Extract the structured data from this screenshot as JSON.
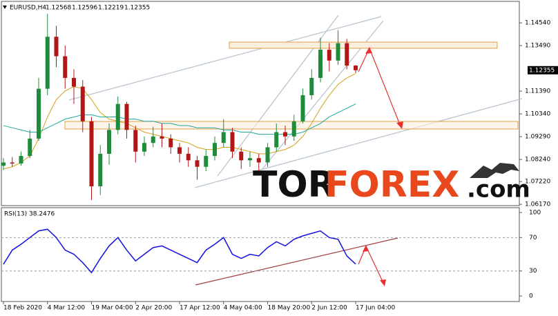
{
  "chart_data": [
    {
      "type": "candlestick",
      "title": "EURUSD,H4",
      "x": [
        "18 Feb 2020",
        null,
        null,
        null,
        null,
        "4 Mar 12:00",
        null,
        null,
        null,
        null,
        "19 Mar 04:00",
        null,
        null,
        null,
        null,
        "2 Apr 20:00",
        null,
        null,
        null,
        null,
        "17 Apr 12:00",
        null,
        null,
        null,
        null,
        "4 May 04:00",
        null,
        null,
        null,
        null,
        "18 May 20:00",
        null,
        null,
        null,
        null,
        "2 Jun 12:00",
        null,
        null,
        null,
        null,
        "17 Jun 04:00"
      ],
      "open": [
        1.0795,
        1.081,
        1.0805,
        1.084,
        1.092,
        1.115,
        1.139,
        1.13,
        1.12,
        1.116,
        1.1,
        1.07,
        1.085,
        1.096,
        1.108,
        1.096,
        1.086,
        1.09,
        1.093,
        1.092,
        1.088,
        1.085,
        1.082,
        1.079,
        1.084,
        1.09,
        1.095,
        1.086,
        1.082,
        1.083,
        1.081,
        1.088,
        1.095,
        1.093,
        1.1,
        1.112,
        1.12,
        1.133,
        1.128,
        1.136,
        1.12568
      ],
      "high": [
        1.083,
        1.0835,
        1.086,
        1.096,
        1.12,
        1.1495,
        1.144,
        1.135,
        1.124,
        1.119,
        1.102,
        1.089,
        1.099,
        1.1115,
        1.109,
        1.098,
        1.093,
        1.0975,
        1.099,
        1.094,
        1.09,
        1.088,
        1.084,
        1.087,
        1.093,
        1.101,
        1.097,
        1.088,
        1.086,
        1.085,
        1.09,
        1.099,
        1.098,
        1.103,
        1.115,
        1.124,
        1.1385,
        1.136,
        1.142,
        1.138,
        1.12596
      ],
      "low": [
        1.0775,
        1.079,
        1.0795,
        1.083,
        1.091,
        1.112,
        1.125,
        1.115,
        1.108,
        1.095,
        1.0636,
        1.066,
        1.08,
        1.094,
        1.092,
        1.081,
        1.084,
        1.088,
        1.088,
        1.085,
        1.081,
        1.079,
        1.073,
        1.077,
        1.082,
        1.088,
        1.083,
        1.078,
        1.079,
        1.077,
        1.079,
        1.086,
        1.089,
        1.091,
        1.099,
        1.11,
        1.118,
        1.123,
        1.126,
        1.124,
        1.12219
      ],
      "close": [
        1.081,
        1.0805,
        1.084,
        1.092,
        1.115,
        1.139,
        1.13,
        1.12,
        1.116,
        1.1,
        1.07,
        1.085,
        1.096,
        1.108,
        1.096,
        1.086,
        1.09,
        1.093,
        1.092,
        1.088,
        1.085,
        1.082,
        1.079,
        1.084,
        1.09,
        1.095,
        1.086,
        1.082,
        1.083,
        1.081,
        1.088,
        1.095,
        1.093,
        1.1,
        1.112,
        1.12,
        1.133,
        1.128,
        1.136,
        1.12568,
        1.12355
      ],
      "up_color": "#1e8c3a",
      "down_color": "#b01818",
      "lines": [
        {
          "color": "#d4a017",
          "values": [
            1.078,
            1.079,
            1.081,
            1.084,
            1.092,
            1.102,
            1.11,
            1.114,
            1.116,
            1.115,
            1.11,
            1.104,
            1.101,
            1.1,
            1.099,
            1.097,
            1.095,
            1.094,
            1.093,
            1.092,
            1.091,
            1.09,
            1.088,
            1.087,
            1.087,
            1.088,
            1.088,
            1.087,
            1.086,
            1.085,
            1.085,
            1.086,
            1.087,
            1.089,
            1.093,
            1.099,
            1.106,
            1.112,
            1.117,
            1.12,
            1.122
          ]
        },
        {
          "color": "#1fa59a",
          "values": [
            1.098,
            1.097,
            1.096,
            1.095,
            1.095,
            1.097,
            1.099,
            1.101,
            1.102,
            1.103,
            1.103,
            1.102,
            1.102,
            1.102,
            1.101,
            1.101,
            1.1,
            1.1,
            1.099,
            1.099,
            1.098,
            1.098,
            1.097,
            1.097,
            1.097,
            1.096,
            1.096,
            1.095,
            1.095,
            1.094,
            1.094,
            1.094,
            1.094,
            1.094,
            1.095,
            1.097,
            1.099,
            1.102,
            1.104,
            1.106,
            1.108
          ]
        }
      ],
      "ylim": [
        1.0611,
        1.1553
      ],
      "yticks": [
        {
          "value": 1.1454,
          "label": "1.14540"
        },
        {
          "value": 1.1349,
          "label": "1.13490"
        },
        {
          "value": 1.1139,
          "label": "1.11390"
        },
        {
          "value": 1.1034,
          "label": "1.10340"
        },
        {
          "value": 1.0929,
          "label": "1.09290"
        },
        {
          "value": 1.0824,
          "label": "1.08240"
        },
        {
          "value": 1.0722,
          "label": "1.07220"
        },
        {
          "value": 1.0617,
          "label": "1.06170"
        }
      ]
    },
    {
      "type": "line",
      "title": "RSI(13)",
      "color": "#1010e0",
      "values": [
        38,
        55,
        62,
        70,
        78,
        80,
        70,
        55,
        50,
        40,
        28,
        45,
        60,
        70,
        55,
        42,
        50,
        58,
        60,
        55,
        50,
        45,
        40,
        55,
        62,
        70,
        50,
        45,
        50,
        48,
        58,
        65,
        60,
        68,
        72,
        75,
        78,
        70,
        68,
        48,
        38.2476
      ],
      "ylim": [
        -6.6,
        105.8
      ],
      "yticks": [
        100,
        70,
        30,
        0
      ],
      "levels": [
        70,
        30
      ]
    }
  ],
  "watermark": {
    "part1": "TOR",
    "part2": "FOREX",
    "part3": ".com"
  }
}
